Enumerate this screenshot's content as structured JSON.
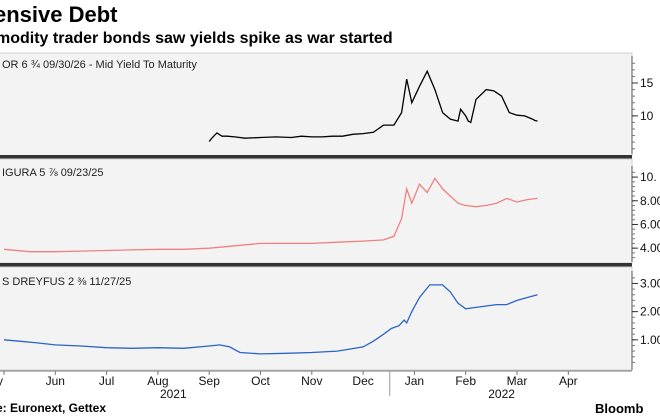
{
  "title": "ensive Debt",
  "subtitle": "modity trader bonds saw yields spike as war started",
  "source": "e: Euronext, Gettex",
  "brand": "Bloomb",
  "colors": {
    "panel1": "#000000",
    "panel2": "#f08080",
    "panel3": "#2a64c8"
  },
  "chart_data": [
    {
      "type": "line",
      "label": "OR 6 ¾ 09/30/26 - Mid Yield To Maturity",
      "color": "#000000",
      "ylim": [
        4.5,
        18.5
      ],
      "yticks": [
        10,
        15
      ],
      "ytick_labels": [
        "10",
        "15"
      ],
      "x": [
        4.0,
        4.05,
        4.15,
        4.25,
        4.35,
        4.5,
        4.7,
        5.0,
        5.3,
        5.6,
        5.8,
        6.0,
        6.2,
        6.4,
        6.6,
        6.8,
        7.0,
        7.2,
        7.4,
        7.6,
        7.75,
        7.85,
        7.95,
        8.1,
        8.25,
        8.4,
        8.55,
        8.7,
        8.85,
        8.9,
        9.0,
        9.05,
        9.1,
        9.2,
        9.4,
        9.55,
        9.7,
        9.85,
        10.0,
        10.15,
        10.3,
        10.35,
        10.4
      ],
      "values": [
        6.1,
        6.6,
        7.4,
        6.9,
        6.9,
        6.8,
        6.6,
        6.7,
        6.8,
        6.7,
        6.9,
        6.8,
        6.8,
        6.9,
        6.9,
        7.2,
        7.3,
        7.5,
        8.6,
        8.6,
        10.5,
        15.6,
        12.0,
        14.5,
        16.8,
        14.0,
        10.5,
        9.5,
        9.2,
        11.0,
        10.0,
        9.2,
        9.0,
        12.5,
        14.0,
        13.8,
        13.0,
        10.5,
        10.1,
        10.0,
        9.5,
        9.3,
        9.2
      ]
    },
    {
      "type": "line",
      "label": "IGURA 5 ⅞ 09/23/25",
      "color": "#f08080",
      "ylim": [
        3.0,
        10.6
      ],
      "yticks": [
        4,
        6,
        8,
        10
      ],
      "ytick_labels": [
        "4.00",
        "6.00",
        "8.00",
        "10."
      ],
      "x": [
        0.0,
        0.5,
        1.0,
        1.5,
        2.0,
        2.5,
        3.0,
        3.5,
        4.0,
        4.5,
        5.0,
        5.5,
        6.0,
        6.5,
        7.0,
        7.4,
        7.6,
        7.75,
        7.85,
        7.95,
        8.1,
        8.25,
        8.4,
        8.55,
        8.7,
        8.85,
        9.0,
        9.2,
        9.4,
        9.6,
        9.8,
        10.0,
        10.2,
        10.4
      ],
      "values": [
        3.9,
        3.7,
        3.7,
        3.75,
        3.8,
        3.85,
        3.9,
        3.9,
        4.0,
        4.2,
        4.4,
        4.4,
        4.4,
        4.5,
        4.6,
        4.7,
        5.0,
        6.5,
        9.0,
        7.8,
        9.4,
        8.7,
        9.9,
        9.0,
        8.4,
        7.8,
        7.6,
        7.5,
        7.6,
        7.8,
        8.2,
        7.9,
        8.1,
        8.2
      ]
    },
    {
      "type": "line",
      "label": "S DREYFUS 2 ⅜ 11/27/25",
      "color": "#2a64c8",
      "ylim": [
        0.0,
        3.3
      ],
      "yticks": [
        1,
        2,
        3
      ],
      "ytick_labels": [
        "1.00",
        "2.00",
        "3.00"
      ],
      "x": [
        0.0,
        0.3,
        0.6,
        1.0,
        1.5,
        2.0,
        2.5,
        3.0,
        3.5,
        4.0,
        4.2,
        4.4,
        4.6,
        5.0,
        5.5,
        6.0,
        6.5,
        7.0,
        7.2,
        7.4,
        7.55,
        7.7,
        7.8,
        7.85,
        7.95,
        8.1,
        8.3,
        8.55,
        8.7,
        8.85,
        9.0,
        9.2,
        9.4,
        9.6,
        9.8,
        10.0,
        10.2,
        10.4
      ],
      "values": [
        1.0,
        0.95,
        0.9,
        0.82,
        0.78,
        0.72,
        0.7,
        0.72,
        0.7,
        0.78,
        0.82,
        0.75,
        0.55,
        0.5,
        0.52,
        0.55,
        0.6,
        0.75,
        0.95,
        1.2,
        1.4,
        1.5,
        1.7,
        1.6,
        2.0,
        2.5,
        2.95,
        2.95,
        2.7,
        2.3,
        2.1,
        2.15,
        2.2,
        2.25,
        2.25,
        2.4,
        2.5,
        2.6
      ]
    }
  ],
  "x_axis": {
    "type": "time",
    "months": [
      "y",
      "Jun",
      "Jul",
      "Aug",
      "Sep",
      "Oct",
      "Nov",
      "Dec",
      "Jan",
      "Feb",
      "Mar",
      "Apr"
    ],
    "month_index": [
      0,
      1,
      2,
      3,
      4,
      5,
      6,
      7,
      8,
      9,
      10,
      11
    ],
    "years": [
      {
        "label": "2021",
        "month_index": 3.3
      },
      {
        "label": "2022",
        "month_index": 9.7
      }
    ]
  }
}
